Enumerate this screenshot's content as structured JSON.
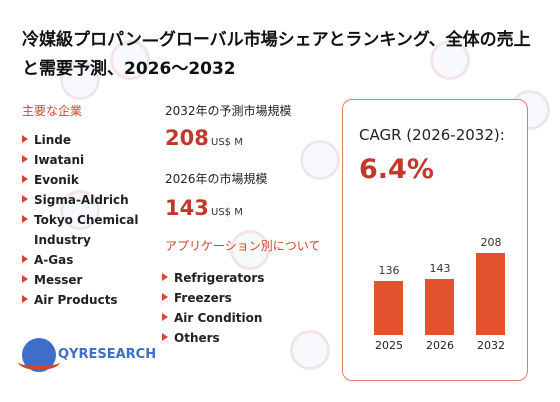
{
  "title": "冷媒級プロパン—グローバル市場シェアとランキング、全体の売上と需要予測、2026～2032",
  "companies_heading": "主要な企業",
  "companies": [
    "Linde",
    "Iwatani",
    "Evonik",
    "Sigma-Aldrich",
    "Tokyo Chemical",
    "Industry",
    "A-Gas",
    "Messer",
    "Air Products"
  ],
  "market_2032": {
    "label": "2032年の予測市場規模",
    "value": "208",
    "unit": "US$ M"
  },
  "market_2026": {
    "label": "2026年の市場規模",
    "value": "143",
    "unit": "US$ M"
  },
  "applications_heading": "アプリケーション別について",
  "applications": [
    "Refrigerators",
    "Freezers",
    "Air Condition",
    "Others"
  ],
  "cagr": {
    "label": "CAGR (2026-2032):",
    "value": "6.4%"
  },
  "chart_data": {
    "type": "bar",
    "categories": [
      "2025",
      "2026",
      "2032"
    ],
    "values": [
      136,
      143,
      208
    ],
    "data_labels": [
      "136",
      "143",
      "208"
    ],
    "color": "#e4522d"
  },
  "logo": {
    "text": "QYRESEARCH"
  }
}
